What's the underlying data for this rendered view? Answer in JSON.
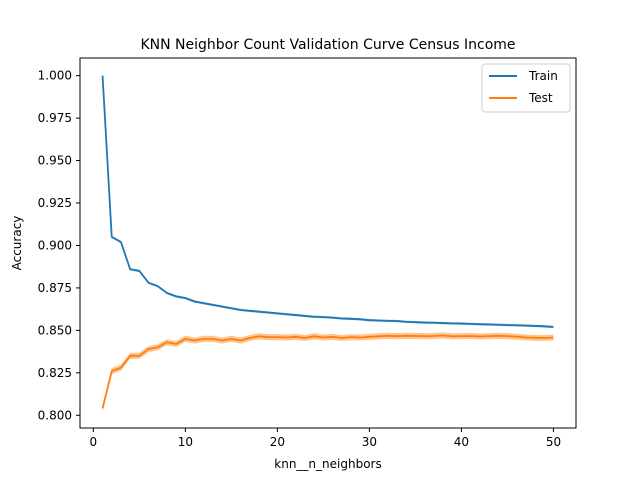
{
  "chart_data": {
    "type": "line",
    "title": "KNN Neighbor Count Validation Curve Census Income",
    "xlabel": "knn__n_neighbors",
    "ylabel": "Accuracy",
    "xlim": [
      -1.45,
      52.45
    ],
    "ylim": [
      0.7925,
      1.0104
    ],
    "xticks": [
      0,
      10,
      20,
      30,
      40,
      50
    ],
    "yticks": [
      0.8,
      0.825,
      0.85,
      0.875,
      0.9,
      0.925,
      0.95,
      0.975,
      1.0
    ],
    "ytick_labels": [
      "0.800",
      "0.825",
      "0.850",
      "0.875",
      "0.900",
      "0.925",
      "0.950",
      "0.975",
      "1.000"
    ],
    "grid": false,
    "legend_position": "top-right",
    "x": [
      1,
      2,
      3,
      4,
      5,
      6,
      7,
      8,
      9,
      10,
      11,
      12,
      13,
      14,
      15,
      16,
      17,
      18,
      19,
      20,
      21,
      22,
      23,
      24,
      25,
      26,
      27,
      28,
      29,
      30,
      31,
      32,
      33,
      34,
      35,
      36,
      37,
      38,
      39,
      40,
      41,
      42,
      43,
      44,
      45,
      46,
      47,
      48,
      49,
      50
    ],
    "series": [
      {
        "name": "Train",
        "color": "#1f77b4",
        "values": [
          1.0,
          0.905,
          0.902,
          0.886,
          0.885,
          0.878,
          0.876,
          0.872,
          0.87,
          0.869,
          0.867,
          0.866,
          0.865,
          0.864,
          0.863,
          0.862,
          0.8615,
          0.861,
          0.8605,
          0.86,
          0.8595,
          0.859,
          0.8585,
          0.858,
          0.8578,
          0.8575,
          0.857,
          0.8568,
          0.8565,
          0.856,
          0.8558,
          0.8556,
          0.8555,
          0.855,
          0.8548,
          0.8546,
          0.8545,
          0.8543,
          0.8541,
          0.854,
          0.8538,
          0.8536,
          0.8535,
          0.8533,
          0.8531,
          0.853,
          0.8528,
          0.8526,
          0.8524,
          0.852
        ],
        "band": 0.0007
      },
      {
        "name": "Test",
        "color": "#ff7f0e",
        "values": [
          0.804,
          0.826,
          0.828,
          0.835,
          0.835,
          0.839,
          0.84,
          0.843,
          0.842,
          0.845,
          0.844,
          0.845,
          0.845,
          0.844,
          0.845,
          0.844,
          0.8455,
          0.8465,
          0.846,
          0.846,
          0.8458,
          0.8462,
          0.8455,
          0.8465,
          0.8458,
          0.8462,
          0.8455,
          0.846,
          0.8458,
          0.8462,
          0.8465,
          0.8468,
          0.8466,
          0.8468,
          0.8467,
          0.8466,
          0.8467,
          0.847,
          0.8465,
          0.8466,
          0.8467,
          0.8464,
          0.8466,
          0.8468,
          0.8466,
          0.8463,
          0.8458,
          0.8456,
          0.8455,
          0.8458
        ],
        "band": 0.0018
      }
    ]
  }
}
